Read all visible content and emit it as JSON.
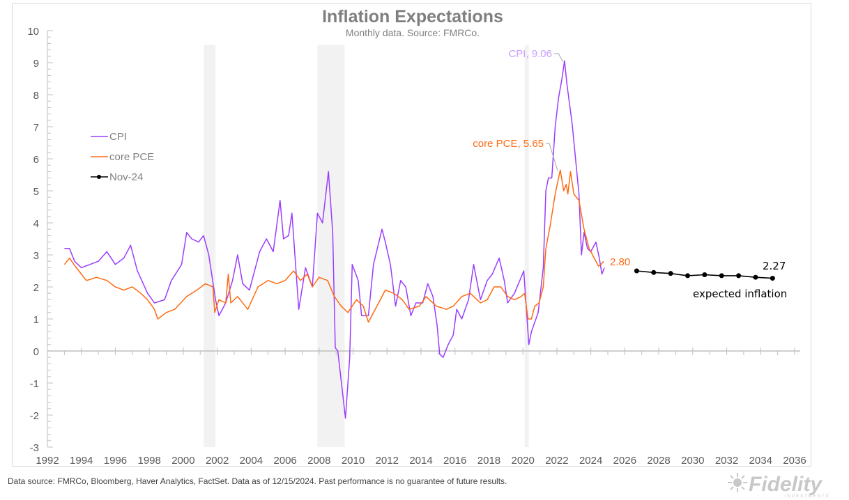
{
  "chart_data": {
    "type": "line",
    "title": "Inflation Expectations",
    "subtitle": "Monthly data. Source: FMRCo.",
    "xlim": [
      1992,
      2036
    ],
    "ylim": [
      -3,
      10
    ],
    "x_ticks": [
      "1992",
      "1994",
      "1996",
      "1998",
      "2000",
      "2002",
      "2004",
      "2006",
      "2008",
      "2010",
      "2012",
      "2014",
      "2016",
      "2018",
      "2020",
      "2022",
      "2024",
      "2026",
      "2028",
      "2030",
      "2032",
      "2034",
      "2036"
    ],
    "y_ticks": [
      "-3",
      "-2",
      "-1",
      "0",
      "1",
      "2",
      "3",
      "4",
      "5",
      "6",
      "7",
      "8",
      "9",
      "10"
    ],
    "grid": false,
    "legend_placement": "upper-left",
    "recession_shading": [
      [
        2001.2,
        2001.9
      ],
      [
        2007.9,
        2009.5
      ],
      [
        2020.1,
        2020.35
      ]
    ],
    "series": [
      {
        "name": "CPI",
        "color": "#9b3dff",
        "points": [
          [
            1993.0,
            3.2
          ],
          [
            1993.3,
            3.2
          ],
          [
            1993.6,
            2.8
          ],
          [
            1994.0,
            2.6
          ],
          [
            1994.5,
            2.7
          ],
          [
            1995.0,
            2.8
          ],
          [
            1995.5,
            3.1
          ],
          [
            1996.0,
            2.7
          ],
          [
            1996.5,
            2.9
          ],
          [
            1996.9,
            3.3
          ],
          [
            1997.3,
            2.5
          ],
          [
            1997.9,
            1.8
          ],
          [
            1998.3,
            1.5
          ],
          [
            1998.9,
            1.6
          ],
          [
            1999.3,
            2.2
          ],
          [
            1999.9,
            2.7
          ],
          [
            2000.2,
            3.7
          ],
          [
            2000.5,
            3.5
          ],
          [
            2000.9,
            3.4
          ],
          [
            2001.2,
            3.6
          ],
          [
            2001.5,
            3.0
          ],
          [
            2001.9,
            1.6
          ],
          [
            2002.1,
            1.1
          ],
          [
            2002.5,
            1.5
          ],
          [
            2002.9,
            2.2
          ],
          [
            2003.2,
            3.0
          ],
          [
            2003.5,
            2.1
          ],
          [
            2003.9,
            1.9
          ],
          [
            2004.5,
            3.1
          ],
          [
            2004.9,
            3.5
          ],
          [
            2005.3,
            3.1
          ],
          [
            2005.7,
            4.7
          ],
          [
            2005.9,
            3.5
          ],
          [
            2006.2,
            3.6
          ],
          [
            2006.4,
            4.3
          ],
          [
            2006.8,
            1.3
          ],
          [
            2007.2,
            2.6
          ],
          [
            2007.6,
            2.0
          ],
          [
            2007.9,
            4.3
          ],
          [
            2008.2,
            4.0
          ],
          [
            2008.55,
            5.6
          ],
          [
            2008.8,
            3.7
          ],
          [
            2008.95,
            0.1
          ],
          [
            2009.1,
            0.0
          ],
          [
            2009.55,
            -2.1
          ],
          [
            2009.8,
            -0.2
          ],
          [
            2009.95,
            2.7
          ],
          [
            2010.3,
            2.2
          ],
          [
            2010.5,
            1.1
          ],
          [
            2010.9,
            1.1
          ],
          [
            2011.2,
            2.7
          ],
          [
            2011.7,
            3.8
          ],
          [
            2011.9,
            3.4
          ],
          [
            2012.2,
            2.7
          ],
          [
            2012.5,
            1.4
          ],
          [
            2012.8,
            2.2
          ],
          [
            2013.1,
            2.0
          ],
          [
            2013.4,
            1.1
          ],
          [
            2013.7,
            1.5
          ],
          [
            2014.1,
            1.5
          ],
          [
            2014.4,
            2.1
          ],
          [
            2014.7,
            1.7
          ],
          [
            2014.95,
            0.8
          ],
          [
            2015.1,
            -0.1
          ],
          [
            2015.3,
            -0.2
          ],
          [
            2015.6,
            0.2
          ],
          [
            2015.9,
            0.5
          ],
          [
            2016.1,
            1.3
          ],
          [
            2016.4,
            1.0
          ],
          [
            2016.8,
            1.6
          ],
          [
            2017.1,
            2.7
          ],
          [
            2017.5,
            1.6
          ],
          [
            2017.9,
            2.2
          ],
          [
            2018.2,
            2.4
          ],
          [
            2018.6,
            2.9
          ],
          [
            2018.9,
            2.2
          ],
          [
            2019.1,
            1.5
          ],
          [
            2019.5,
            1.8
          ],
          [
            2019.9,
            2.3
          ],
          [
            2020.05,
            2.5
          ],
          [
            2020.35,
            0.2
          ],
          [
            2020.5,
            0.6
          ],
          [
            2020.9,
            1.2
          ],
          [
            2021.2,
            2.6
          ],
          [
            2021.35,
            5.0
          ],
          [
            2021.5,
            5.4
          ],
          [
            2021.7,
            5.4
          ],
          [
            2021.9,
            7.0
          ],
          [
            2022.1,
            7.9
          ],
          [
            2022.3,
            8.5
          ],
          [
            2022.45,
            9.06
          ],
          [
            2022.6,
            8.3
          ],
          [
            2022.9,
            7.1
          ],
          [
            2023.1,
            6.0
          ],
          [
            2023.3,
            4.9
          ],
          [
            2023.45,
            3.0
          ],
          [
            2023.6,
            3.7
          ],
          [
            2023.8,
            3.2
          ],
          [
            2024.0,
            3.1
          ],
          [
            2024.3,
            3.4
          ],
          [
            2024.5,
            2.9
          ],
          [
            2024.65,
            2.4
          ],
          [
            2024.8,
            2.6
          ]
        ]
      },
      {
        "name": "core PCE",
        "color": "#ff6a10",
        "points": [
          [
            1993.0,
            2.7
          ],
          [
            1993.3,
            2.9
          ],
          [
            1993.7,
            2.6
          ],
          [
            1994.3,
            2.2
          ],
          [
            1994.9,
            2.3
          ],
          [
            1995.5,
            2.2
          ],
          [
            1996.0,
            2.0
          ],
          [
            1996.5,
            1.9
          ],
          [
            1997.0,
            2.0
          ],
          [
            1997.5,
            1.8
          ],
          [
            1997.9,
            1.6
          ],
          [
            1998.3,
            1.3
          ],
          [
            1998.5,
            1.0
          ],
          [
            1999.0,
            1.2
          ],
          [
            1999.5,
            1.3
          ],
          [
            2000.2,
            1.7
          ],
          [
            2000.8,
            1.9
          ],
          [
            2001.3,
            2.1
          ],
          [
            2001.75,
            2.0
          ],
          [
            2001.85,
            1.2
          ],
          [
            2002.1,
            1.6
          ],
          [
            2002.5,
            1.5
          ],
          [
            2002.65,
            2.4
          ],
          [
            2002.8,
            1.5
          ],
          [
            2003.2,
            1.7
          ],
          [
            2003.8,
            1.3
          ],
          [
            2004.4,
            2.0
          ],
          [
            2005.0,
            2.2
          ],
          [
            2005.5,
            2.1
          ],
          [
            2006.0,
            2.2
          ],
          [
            2006.5,
            2.5
          ],
          [
            2006.9,
            2.2
          ],
          [
            2007.3,
            2.4
          ],
          [
            2007.6,
            2.0
          ],
          [
            2008.0,
            2.3
          ],
          [
            2008.5,
            2.2
          ],
          [
            2008.9,
            1.7
          ],
          [
            2009.3,
            1.4
          ],
          [
            2009.7,
            1.2
          ],
          [
            2010.2,
            1.6
          ],
          [
            2010.6,
            1.4
          ],
          [
            2010.9,
            0.9
          ],
          [
            2011.4,
            1.4
          ],
          [
            2011.9,
            1.9
          ],
          [
            2012.4,
            1.8
          ],
          [
            2012.9,
            1.6
          ],
          [
            2013.3,
            1.3
          ],
          [
            2013.9,
            1.4
          ],
          [
            2014.3,
            1.7
          ],
          [
            2014.9,
            1.4
          ],
          [
            2015.5,
            1.3
          ],
          [
            2015.9,
            1.4
          ],
          [
            2016.4,
            1.7
          ],
          [
            2016.9,
            1.8
          ],
          [
            2017.5,
            1.5
          ],
          [
            2017.9,
            1.6
          ],
          [
            2018.3,
            2.0
          ],
          [
            2018.7,
            2.0
          ],
          [
            2019.1,
            1.7
          ],
          [
            2019.5,
            1.6
          ],
          [
            2019.9,
            1.7
          ],
          [
            2020.1,
            1.8
          ],
          [
            2020.3,
            1.0
          ],
          [
            2020.5,
            1.0
          ],
          [
            2020.7,
            1.4
          ],
          [
            2020.95,
            1.5
          ],
          [
            2021.2,
            2.0
          ],
          [
            2021.35,
            3.2
          ],
          [
            2021.6,
            3.9
          ],
          [
            2021.9,
            4.9
          ],
          [
            2022.1,
            5.4
          ],
          [
            2022.2,
            5.65
          ],
          [
            2022.4,
            5.0
          ],
          [
            2022.55,
            5.2
          ],
          [
            2022.65,
            4.9
          ],
          [
            2022.8,
            5.6
          ],
          [
            2023.0,
            4.9
          ],
          [
            2023.3,
            4.7
          ],
          [
            2023.6,
            3.8
          ],
          [
            2023.9,
            3.2
          ],
          [
            2024.2,
            2.9
          ],
          [
            2024.45,
            2.65
          ],
          [
            2024.6,
            2.7
          ],
          [
            2024.75,
            2.8
          ]
        ]
      },
      {
        "name": "Nov-24",
        "color": "#000000",
        "markers": true,
        "points": [
          [
            2026.7,
            2.5
          ],
          [
            2027.7,
            2.45
          ],
          [
            2028.7,
            2.42
          ],
          [
            2029.7,
            2.35
          ],
          [
            2030.7,
            2.38
          ],
          [
            2031.7,
            2.35
          ],
          [
            2032.7,
            2.35
          ],
          [
            2033.7,
            2.3
          ],
          [
            2034.7,
            2.27
          ]
        ]
      }
    ],
    "annotations": {
      "cpi_peak": "CPI, 9.06",
      "pce_peak": "core PCE, 5.65",
      "pce_last": "2.80",
      "expected_last": "2.27",
      "expected_label": "expected inflation"
    },
    "annotation_colors": {
      "cpi_peak": "#c9a0ff",
      "pce": "#ff6a10",
      "expected": "#000000",
      "leader": "#a6a6a6"
    }
  },
  "footer": {
    "source": "Data source: FMRCo, Bloomberg, Haver Analytics, FactSet. Data as of 12/15/2024. Past performance is no guarantee of future results.",
    "logo": "Fidelity INVESTMENTS"
  }
}
